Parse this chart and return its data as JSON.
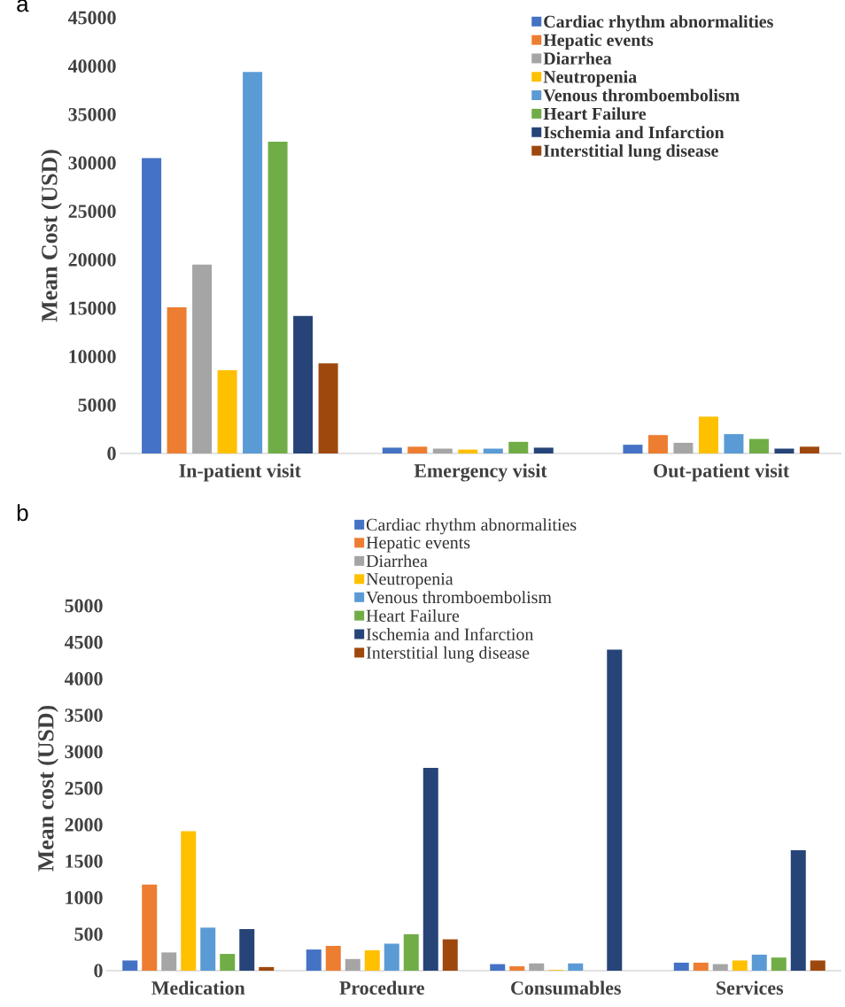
{
  "chart_data": [
    {
      "type": "bar",
      "title": "a",
      "ylabel": "Mean Cost (USD)",
      "categories": [
        "In-patient visit",
        "Emergency visit",
        "Out-patient visit"
      ],
      "ylim": [
        0,
        45000
      ],
      "yticks": [
        0,
        5000,
        10000,
        15000,
        20000,
        25000,
        30000,
        35000,
        40000,
        45000
      ],
      "legend": "top right",
      "series": [
        {
          "name": "Cardiac rhythm abnormalities",
          "color": "#4472c4",
          "values": [
            30500,
            600,
            900
          ]
        },
        {
          "name": "Hepatic events",
          "color": "#ed7d31",
          "values": [
            15100,
            700,
            1900
          ]
        },
        {
          "name": "Diarrhea",
          "color": "#a5a5a5",
          "values": [
            19500,
            500,
            1100
          ]
        },
        {
          "name": "Neutropenia",
          "color": "#ffc000",
          "values": [
            8600,
            400,
            3800
          ]
        },
        {
          "name": "Venous thromboembolism",
          "color": "#5b9bd5",
          "values": [
            39400,
            500,
            2000
          ]
        },
        {
          "name": "Heart Failure",
          "color": "#70ad47",
          "values": [
            32200,
            1200,
            1500
          ]
        },
        {
          "name": "Ischemia and Infarction",
          "color": "#264478",
          "values": [
            14200,
            600,
            500
          ]
        },
        {
          "name": "Interstitial lung disease",
          "color": "#9e480e",
          "values": [
            9300,
            null,
            700
          ]
        }
      ]
    },
    {
      "type": "bar",
      "title": "b",
      "ylabel": "Mean cost (USD)",
      "categories": [
        "Medication",
        "Procedure",
        "Consumables",
        "Services"
      ],
      "ylim": [
        0,
        5000
      ],
      "yticks": [
        0,
        500,
        1000,
        1500,
        2000,
        2500,
        3000,
        3500,
        4000,
        4500,
        5000
      ],
      "legend": "top",
      "series": [
        {
          "name": "Cardiac rhythm abnormalities",
          "color": "#4472c4",
          "values": [
            140,
            290,
            90,
            110
          ]
        },
        {
          "name": "Hepatic events",
          "color": "#ed7d31",
          "values": [
            1180,
            340,
            60,
            110
          ]
        },
        {
          "name": "Diarrhea",
          "color": "#a5a5a5",
          "values": [
            250,
            160,
            100,
            90
          ]
        },
        {
          "name": "Neutropenia",
          "color": "#ffc000",
          "values": [
            1910,
            280,
            10,
            140
          ]
        },
        {
          "name": "Venous thromboembolism",
          "color": "#5b9bd5",
          "values": [
            590,
            370,
            100,
            220
          ]
        },
        {
          "name": "Heart Failure",
          "color": "#70ad47",
          "values": [
            230,
            500,
            null,
            180
          ]
        },
        {
          "name": "Ischemia and Infarction",
          "color": "#264478",
          "values": [
            570,
            2780,
            4400,
            1650
          ]
        },
        {
          "name": "Interstitial lung disease",
          "color": "#9e480e",
          "values": [
            50,
            430,
            null,
            140
          ]
        }
      ]
    }
  ]
}
